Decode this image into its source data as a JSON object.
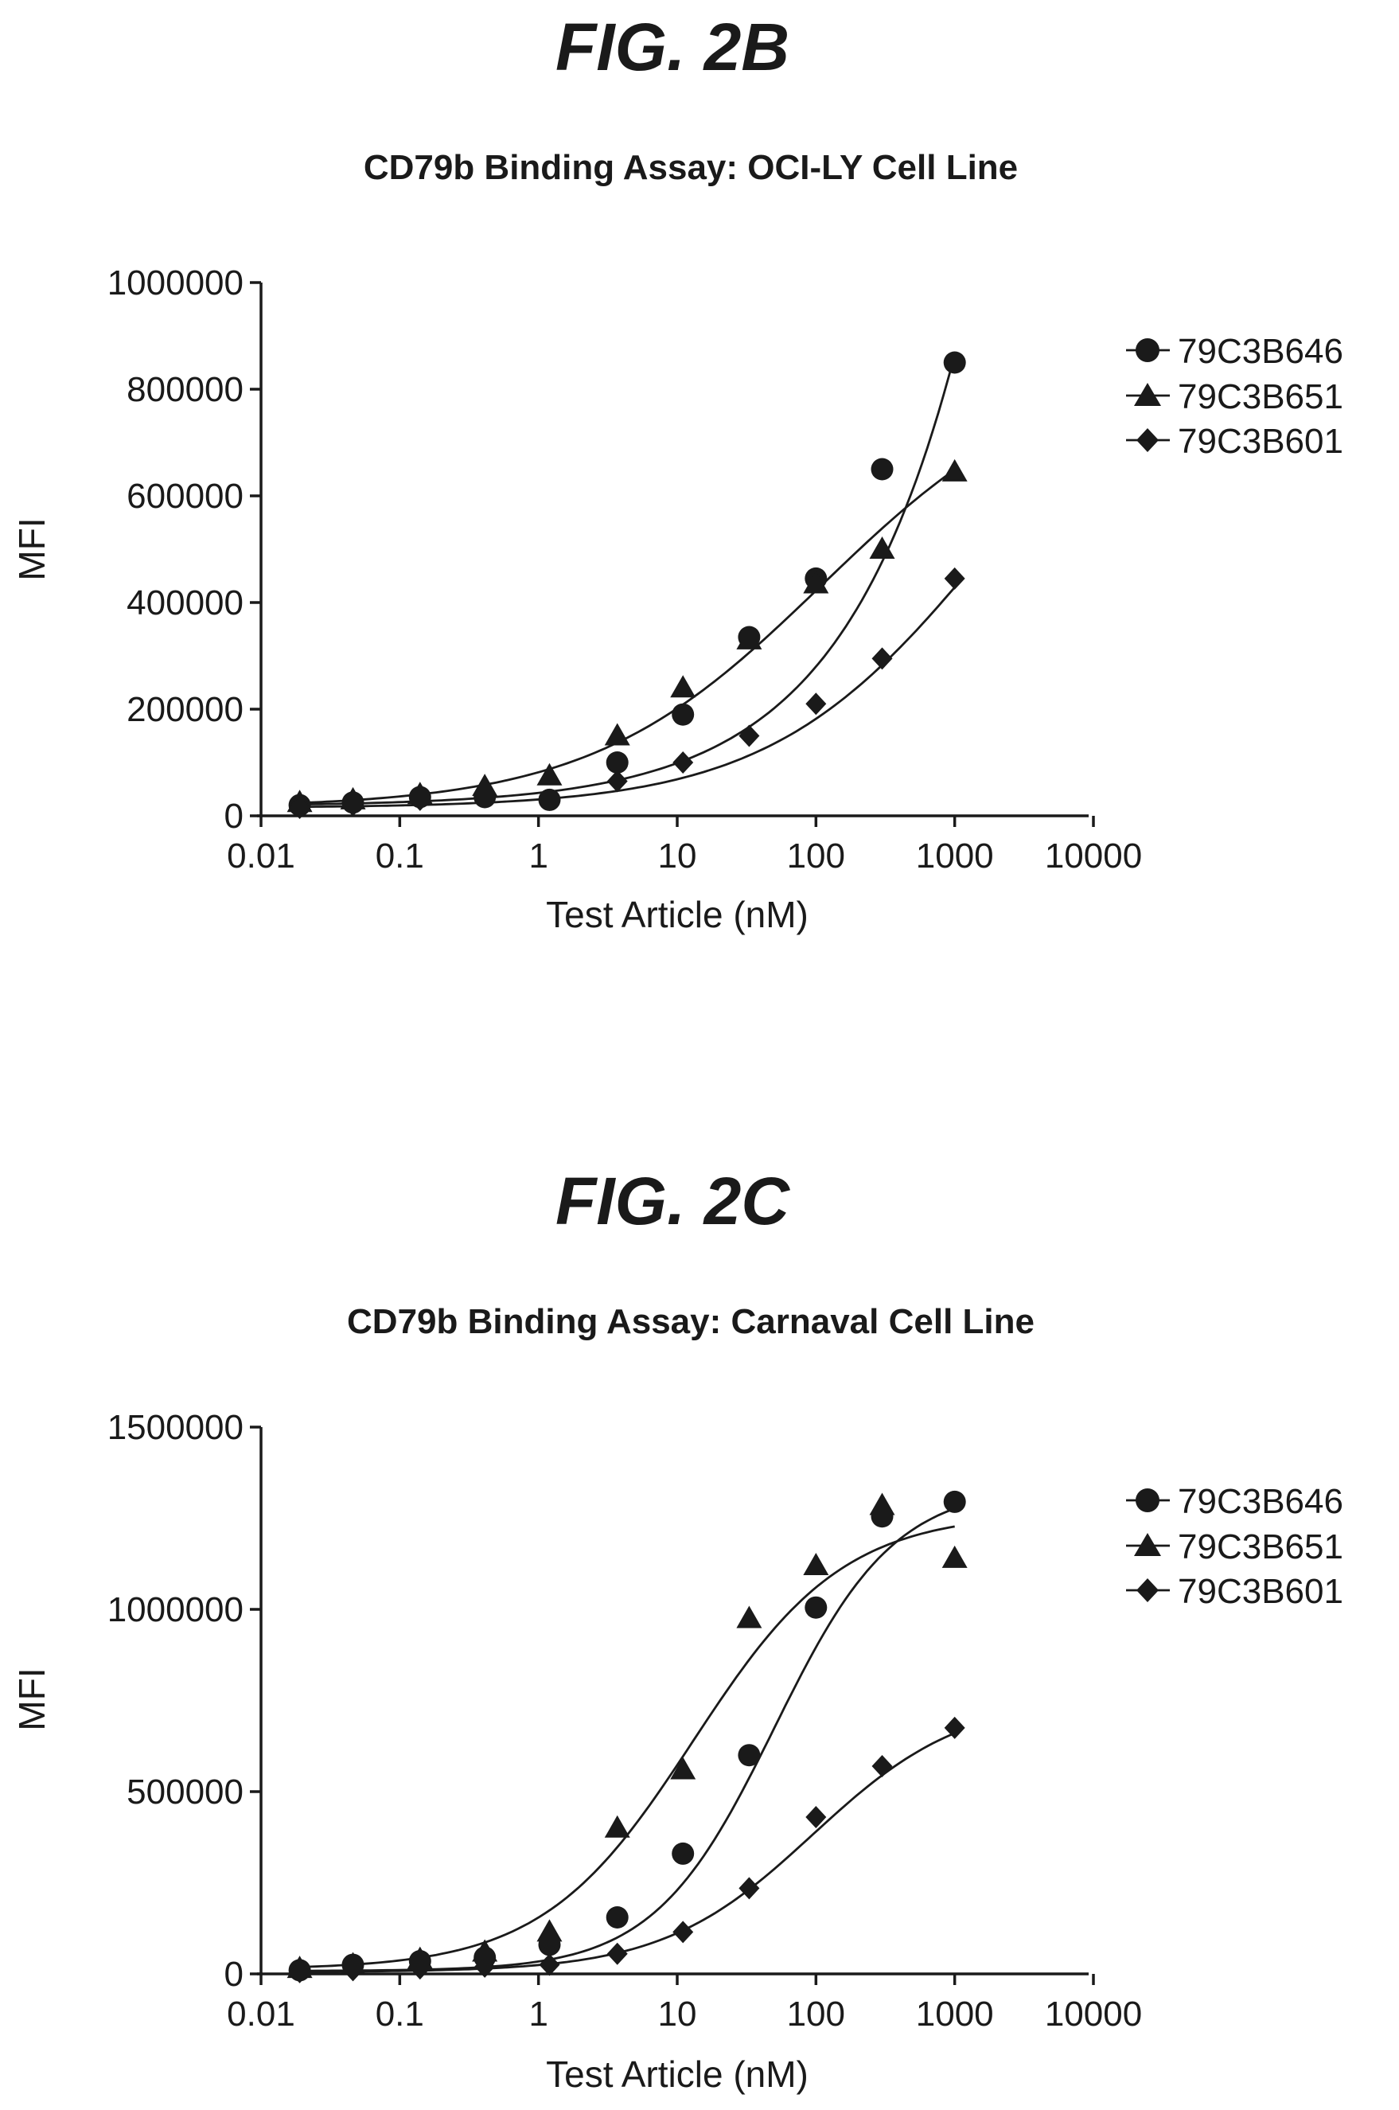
{
  "chart_data": [
    {
      "figure_label": "FIG. 2B",
      "type": "scatter",
      "title": "CD79b Binding Assay: OCI-LY Cell Line",
      "xlabel": "Test Article (nM)",
      "ylabel": "MFI",
      "xscale": "log",
      "xlim": [
        0.01,
        10000
      ],
      "ylim": [
        0,
        1000000
      ],
      "xticks": [
        "0.01",
        "0.1",
        "1",
        "10",
        "100",
        "1000",
        "10000"
      ],
      "yticks": [
        "0",
        "200000",
        "400000",
        "600000",
        "800000",
        "1000000"
      ],
      "legend_position": "right",
      "grid": false,
      "series": [
        {
          "name": "79C3B646",
          "marker": "circle",
          "x": [
            0.019,
            0.046,
            0.14,
            0.41,
            1.2,
            3.7,
            11,
            33,
            100,
            300,
            1000
          ],
          "y": [
            20000,
            25000,
            35000,
            35000,
            30000,
            100000,
            190000,
            335000,
            445000,
            650000,
            850000
          ],
          "fit": {
            "model": "power",
            "bottom": 18000,
            "k": 25000,
            "n": 0.51
          }
        },
        {
          "name": "79C3B651",
          "marker": "triangle",
          "x": [
            0.019,
            0.046,
            0.14,
            0.41,
            1.2,
            3.7,
            11,
            33,
            100,
            300,
            1000
          ],
          "y": [
            25000,
            30000,
            40000,
            55000,
            75000,
            150000,
            240000,
            330000,
            435000,
            500000,
            645000
          ],
          "fit": {
            "model": "4pl",
            "bottom": 15000,
            "top": 850000,
            "ec50": 110,
            "hill": 0.52
          }
        },
        {
          "name": "79C3B601",
          "marker": "diamond",
          "x": [
            0.019,
            0.046,
            0.14,
            0.41,
            1.2,
            3.7,
            11,
            33,
            100,
            300,
            1000
          ],
          "y": [
            15000,
            20000,
            30000,
            40000,
            30000,
            65000,
            100000,
            150000,
            210000,
            295000,
            445000
          ],
          "fit": {
            "model": "4pl",
            "bottom": 15000,
            "top": 1000000,
            "ec50": 1800,
            "hill": 0.55
          }
        }
      ]
    },
    {
      "figure_label": "FIG. 2C",
      "type": "scatter",
      "title": "CD79b Binding Assay: Carnaval Cell Line",
      "xlabel": "Test Article (nM)",
      "ylabel": "MFI",
      "xscale": "log",
      "xlim": [
        0.01,
        10000
      ],
      "ylim": [
        0,
        1500000
      ],
      "xticks": [
        "0.01",
        "0.1",
        "1",
        "10",
        "100",
        "1000",
        "10000"
      ],
      "yticks": [
        "0",
        "500000",
        "1000000",
        "1500000"
      ],
      "legend_position": "right",
      "grid": false,
      "series": [
        {
          "name": "79C3B646",
          "marker": "circle",
          "x": [
            0.019,
            0.046,
            0.14,
            0.41,
            1.2,
            3.7,
            11,
            33,
            100,
            300,
            1000
          ],
          "y": [
            10000,
            25000,
            35000,
            45000,
            80000,
            155000,
            330000,
            600000,
            1005000,
            1255000,
            1295000
          ],
          "fit": {
            "model": "4pl",
            "bottom": 8000,
            "top": 1340000,
            "ec50": 50,
            "hill": 1.0
          }
        },
        {
          "name": "79C3B651",
          "marker": "triangle",
          "x": [
            0.019,
            0.046,
            0.14,
            0.41,
            1.2,
            3.7,
            11,
            33,
            100,
            300,
            1000
          ],
          "y": [
            15000,
            25000,
            40000,
            60000,
            115000,
            400000,
            560000,
            975000,
            1120000,
            1285000,
            1140000
          ],
          "fit": {
            "model": "4pl",
            "bottom": 12000,
            "top": 1265000,
            "ec50": 13,
            "hill": 0.8
          }
        },
        {
          "name": "79C3B601",
          "marker": "diamond",
          "x": [
            0.019,
            0.046,
            0.14,
            0.41,
            1.2,
            3.7,
            11,
            33,
            100,
            300,
            1000
          ],
          "y": [
            5000,
            10000,
            15000,
            20000,
            25000,
            55000,
            115000,
            235000,
            430000,
            570000,
            675000
          ],
          "fit": {
            "model": "4pl",
            "bottom": 5000,
            "top": 760000,
            "ec50": 95,
            "hill": 0.8
          }
        }
      ]
    }
  ]
}
